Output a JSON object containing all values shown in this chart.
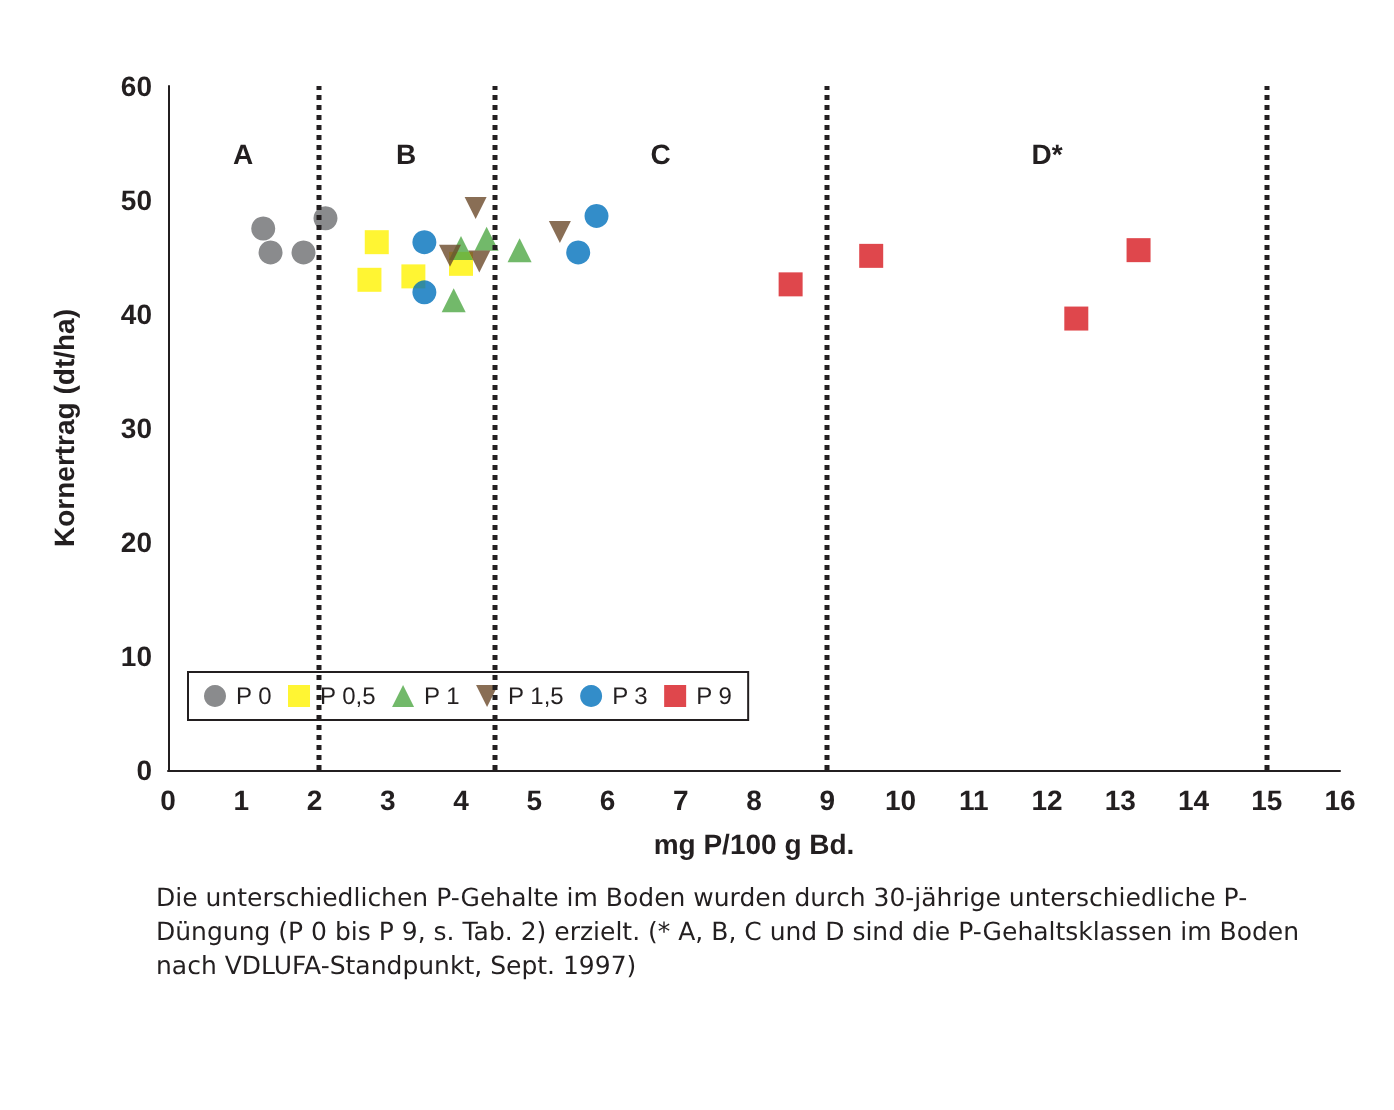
{
  "chart_data": {
    "type": "scatter",
    "xlabel": "mg P/100 g Bd.",
    "ylabel": "Kornertrag (dt/ha)",
    "xlim": [
      0,
      16
    ],
    "xticks": [
      0,
      1,
      2,
      3,
      4,
      5,
      6,
      7,
      8,
      9,
      10,
      11,
      12,
      13,
      14,
      15,
      16
    ],
    "ylim": [
      0,
      60
    ],
    "yticks": [
      0,
      10,
      20,
      30,
      40,
      50,
      60
    ],
    "grid": false,
    "legend": "bottom left",
    "series": [
      {
        "name": "P 0",
        "color": "#6d6e71",
        "marker": "circle",
        "x": [
          1.3,
          1.4,
          1.85,
          2.15
        ],
        "values": [
          47.5,
          45.4,
          45.4,
          48.4
        ]
      },
      {
        "name": "P 0,5",
        "color": "#fff200",
        "marker": "square",
        "x": [
          2.85,
          2.75,
          3.35,
          4.0
        ],
        "values": [
          46.3,
          43.0,
          43.3,
          44.4
        ]
      },
      {
        "name": "P 1",
        "color": "#4fa845",
        "marker": "triangle",
        "x": [
          4.0,
          4.35,
          4.8,
          3.9
        ],
        "values": [
          45.8,
          46.6,
          45.6,
          41.2
        ]
      },
      {
        "name": "P 1,5",
        "color": "#6b4a2b",
        "marker": "triangle-down",
        "x": [
          4.2,
          3.85,
          4.25,
          5.35
        ],
        "values": [
          49.3,
          45.1,
          44.6,
          47.2
        ]
      },
      {
        "name": "P 3",
        "color": "#0071bc",
        "marker": "circle",
        "x": [
          3.5,
          3.5,
          5.6,
          5.85
        ],
        "values": [
          46.3,
          41.9,
          45.4,
          48.6
        ]
      },
      {
        "name": "P 9",
        "color": "#d7191f",
        "marker": "square",
        "x": [
          8.5,
          9.6,
          12.4,
          13.25
        ],
        "values": [
          42.6,
          45.1,
          39.6,
          45.6
        ]
      }
    ],
    "ref_lines": [
      {
        "axis": "x",
        "value": 2.05,
        "line_style": "dotted",
        "color": "#231f20"
      },
      {
        "axis": "x",
        "value": 4.45,
        "line_style": "dotted",
        "color": "#231f20"
      },
      {
        "axis": "x",
        "value": 9,
        "line_style": "dotted",
        "color": "#231f20"
      },
      {
        "axis": "x",
        "value": 15,
        "line_style": "dotted",
        "color": "#231f20"
      }
    ],
    "annotations": [
      "A",
      "B",
      "C",
      "D*",
      "Die unterschiedlichen P-Gehalte im Boden wurden durch 30-jährige unterschiedliche P-Düngung (P 0 bis P 9, s. Tab. 2) erzielt. (* A, B, C und D sind die P-Gehaltsklassen im Boden nach VDLUFA-Standpunkt, Sept. 1997)"
    ]
  }
}
